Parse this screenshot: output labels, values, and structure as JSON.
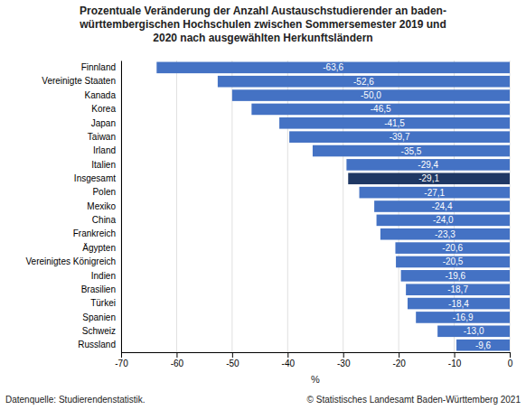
{
  "chart_data": {
    "type": "bar",
    "orientation": "horizontal",
    "title": "Prozentuale Veränderung der Anzahl Austauschstudierender an baden-\nwürttembergischen Hochschulen zwischen Sommersemester 2019 und\n2020 nach ausgewählten Herkunftsländern",
    "categories": [
      "Russland",
      "Schweiz",
      "Spanien",
      "Türkei",
      "Brasilien",
      "Indien",
      "Vereinigtes Königreich",
      "Ägypten",
      "Frankreich",
      "China",
      "Mexiko",
      "Polen",
      "Insgesamt",
      "Italien",
      "Irland",
      "Taiwan",
      "Japan",
      "Korea",
      "Kanada",
      "Vereinigte Staaten",
      "Finnland"
    ],
    "values": [
      -9.6,
      -13.0,
      -16.9,
      -18.4,
      -18.7,
      -19.6,
      -20.5,
      -20.6,
      -23.3,
      -24.0,
      -24.4,
      -27.1,
      -29.1,
      -29.4,
      -35.5,
      -39.7,
      -41.5,
      -46.5,
      -50.0,
      -52.6,
      -63.6
    ],
    "value_labels": [
      "-9,6",
      "-13,0",
      "-16,9",
      "-18,4",
      "-18,7",
      "-19,6",
      "-20,5",
      "-20,6",
      "-23,3",
      "-24,0",
      "-24,4",
      "-27,1",
      "-29,1",
      "-29,4",
      "-35,5",
      "-39,7",
      "-41,5",
      "-46,5",
      "-50,0",
      "-52,6",
      "-63,6"
    ],
    "data_labels": true,
    "colors": [
      "#4472C4",
      "#4472C4",
      "#4472C4",
      "#4472C4",
      "#4472C4",
      "#4472C4",
      "#4472C4",
      "#4472C4",
      "#4472C4",
      "#4472C4",
      "#4472C4",
      "#4472C4",
      "#1F3864",
      "#4472C4",
      "#4472C4",
      "#4472C4",
      "#4472C4",
      "#4472C4",
      "#4472C4",
      "#4472C4",
      "#4472C4"
    ],
    "xlabel": "%",
    "xlim": [
      -70,
      0
    ],
    "xticks": [
      -70,
      -60,
      -50,
      -40,
      -30,
      -20,
      -10,
      0
    ],
    "grid": true,
    "annotations": [
      "Datenquelle: Studierendenstatistik.",
      "© Statistisches Landesamt Baden-Württemberg 2021"
    ]
  }
}
